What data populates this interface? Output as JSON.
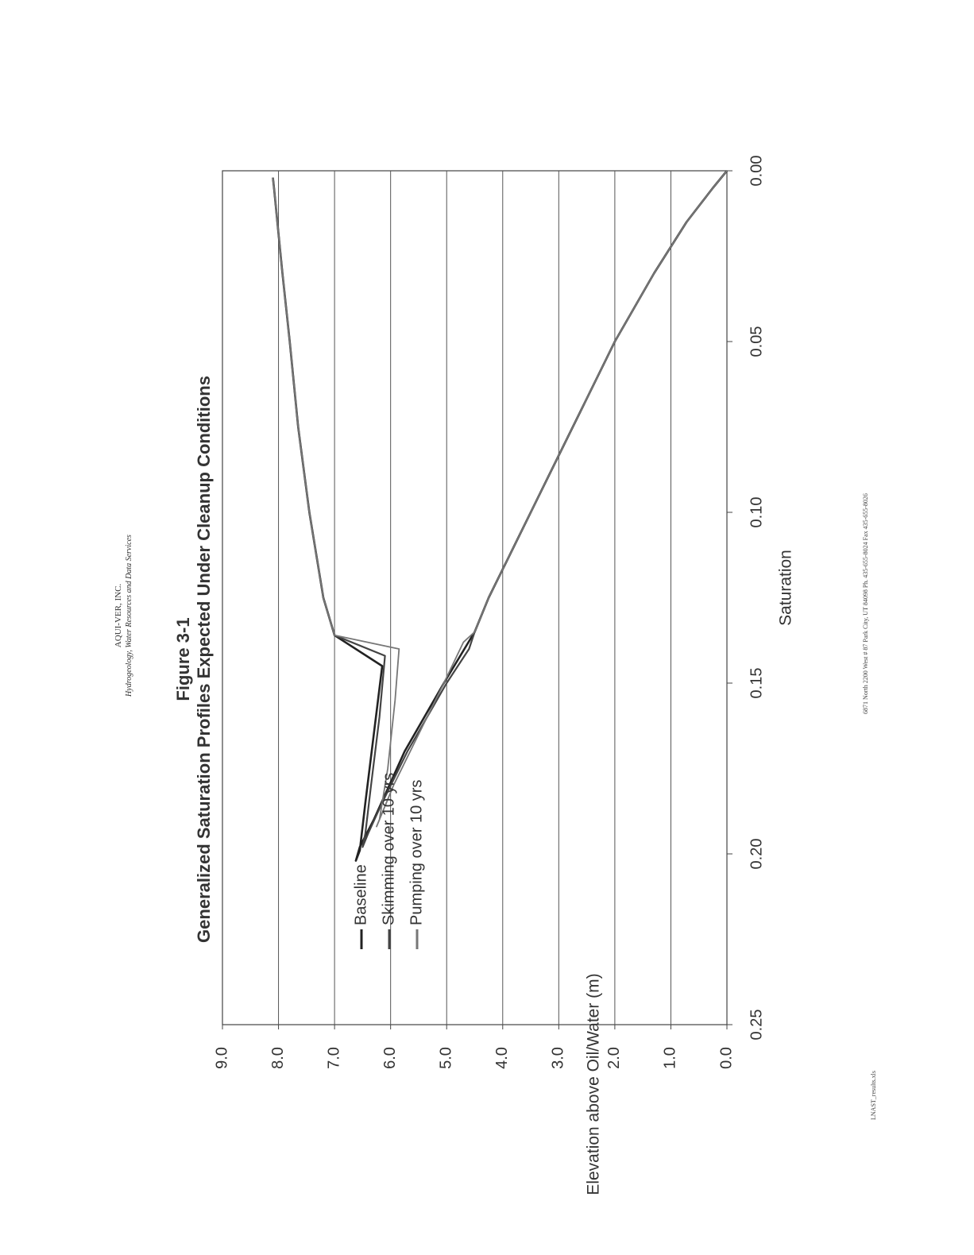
{
  "header": {
    "company": "AQUI-VER, INC.",
    "tagline": "Hydrogeology, Water Resources and Data Services"
  },
  "figure": {
    "number": "Figure 3-1",
    "title": "Generalized Saturation Profiles Expected Under Cleanup Conditions"
  },
  "footer": {
    "address": "6871 North 2200 West # 87 Park City, UT 84098   Ph. 435-655-8024   Fax 435-655-8026",
    "filename": "LNAST_results.xls"
  },
  "colors": {
    "baseline": "#222222",
    "skimming": "#444444",
    "pumping": "#777777",
    "grid": "#555555",
    "text": "#333333"
  },
  "chart_data": {
    "type": "line",
    "orientation": "rotated 90 degrees counter-clockwise",
    "xlabel": "Saturation",
    "ylabel": "Elevation above Oil/Water (m)",
    "xlim": [
      0,
      0.25
    ],
    "ylim": [
      0,
      9
    ],
    "x_ticks": [
      "0.00",
      "0.05",
      "0.10",
      "0.15",
      "0.20",
      "0.25"
    ],
    "y_ticks": [
      "0.0",
      "1.0",
      "2.0",
      "3.0",
      "4.0",
      "5.0",
      "6.0",
      "7.0",
      "8.0",
      "9.0"
    ],
    "grid": "horizontal",
    "legend": "upper-left",
    "series": [
      {
        "name": "Baseline",
        "points": [
          [
            0,
            0
          ],
          [
            0.005,
            0.25
          ],
          [
            0.015,
            0.72
          ],
          [
            0.03,
            1.3
          ],
          [
            0.05,
            2.0
          ],
          [
            0.07,
            2.6
          ],
          [
            0.09,
            3.2
          ],
          [
            0.11,
            3.8
          ],
          [
            0.125,
            4.25
          ],
          [
            0.135,
            4.5
          ],
          [
            0.15,
            5.05
          ],
          [
            0.17,
            5.75
          ],
          [
            0.19,
            6.3
          ],
          [
            0.198,
            6.55
          ],
          [
            0.202,
            6.62
          ],
          [
            0.199,
            6.55
          ],
          [
            0.185,
            6.45
          ],
          [
            0.165,
            6.3
          ],
          [
            0.145,
            6.15
          ],
          [
            0.136,
            7.0
          ],
          [
            0.125,
            7.2
          ],
          [
            0.1,
            7.45
          ],
          [
            0.075,
            7.65
          ],
          [
            0.05,
            7.8
          ],
          [
            0.03,
            7.93
          ],
          [
            0.015,
            8.02
          ],
          [
            0.005,
            8.08
          ],
          [
            0.002,
            8.1
          ]
        ]
      },
      {
        "name": "Skimming over 10 yrs",
        "points": [
          [
            0,
            0
          ],
          [
            0.005,
            0.25
          ],
          [
            0.015,
            0.72
          ],
          [
            0.03,
            1.3
          ],
          [
            0.05,
            2.0
          ],
          [
            0.07,
            2.6
          ],
          [
            0.09,
            3.2
          ],
          [
            0.11,
            3.8
          ],
          [
            0.125,
            4.25
          ],
          [
            0.135,
            4.5
          ],
          [
            0.14,
            4.6
          ],
          [
            0.15,
            5.0
          ],
          [
            0.17,
            5.7
          ],
          [
            0.185,
            6.15
          ],
          [
            0.194,
            6.4
          ],
          [
            0.198,
            6.5
          ],
          [
            0.194,
            6.45
          ],
          [
            0.18,
            6.35
          ],
          [
            0.16,
            6.2
          ],
          [
            0.142,
            6.1
          ],
          [
            0.136,
            7.0
          ],
          [
            0.125,
            7.2
          ],
          [
            0.1,
            7.45
          ],
          [
            0.075,
            7.65
          ],
          [
            0.05,
            7.8
          ],
          [
            0.03,
            7.93
          ],
          [
            0.015,
            8.02
          ],
          [
            0.005,
            8.08
          ],
          [
            0.002,
            8.1
          ]
        ]
      },
      {
        "name": "Pumping over 10 yrs",
        "points": [
          [
            0,
            0
          ],
          [
            0.005,
            0.25
          ],
          [
            0.015,
            0.72
          ],
          [
            0.03,
            1.3
          ],
          [
            0.05,
            2.0
          ],
          [
            0.07,
            2.6
          ],
          [
            0.09,
            3.2
          ],
          [
            0.11,
            3.8
          ],
          [
            0.125,
            4.25
          ],
          [
            0.135,
            4.5
          ],
          [
            0.138,
            4.7
          ],
          [
            0.15,
            5.05
          ],
          [
            0.165,
            5.5
          ],
          [
            0.18,
            5.95
          ],
          [
            0.188,
            6.15
          ],
          [
            0.192,
            6.25
          ],
          [
            0.19,
            6.2
          ],
          [
            0.175,
            6.05
          ],
          [
            0.155,
            5.92
          ],
          [
            0.14,
            5.85
          ],
          [
            0.136,
            7.0
          ],
          [
            0.125,
            7.2
          ],
          [
            0.1,
            7.45
          ],
          [
            0.075,
            7.65
          ],
          [
            0.05,
            7.8
          ],
          [
            0.03,
            7.93
          ],
          [
            0.015,
            8.02
          ],
          [
            0.005,
            8.08
          ],
          [
            0.002,
            8.1
          ]
        ]
      }
    ]
  }
}
